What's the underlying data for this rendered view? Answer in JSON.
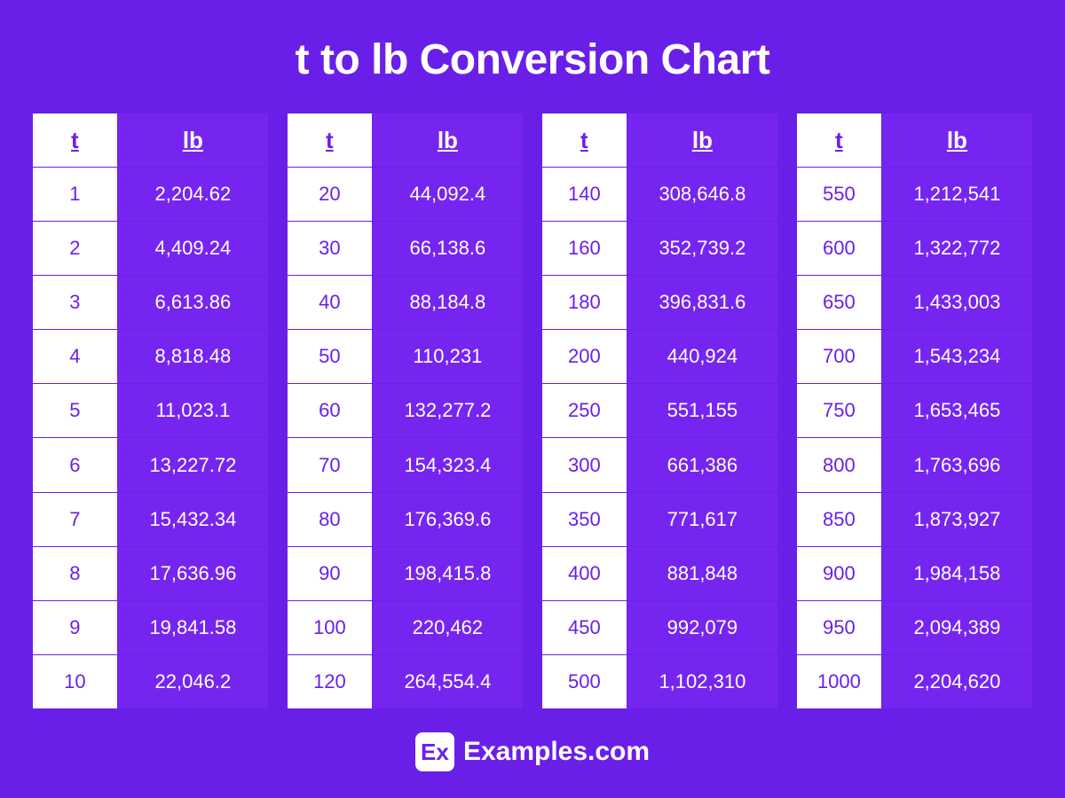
{
  "title": "t to lb Conversion Chart",
  "colors": {
    "background": "#6a1fe8",
    "lb_col_bg": "#7625f1",
    "t_col_bg": "#ffffff",
    "t_text": "#6a1fe8",
    "lb_text": "#ffffff",
    "border": "#6a1fe8",
    "title_text": "#ffffff"
  },
  "typography": {
    "title_fontsize": 48,
    "header_fontsize": 26,
    "cell_fontsize": 22,
    "brand_fontsize": 30
  },
  "headers": {
    "t": "t",
    "lb": "lb"
  },
  "tables": [
    {
      "rows": [
        {
          "t": "1",
          "lb": "2,204.62"
        },
        {
          "t": "2",
          "lb": "4,409.24"
        },
        {
          "t": "3",
          "lb": "6,613.86"
        },
        {
          "t": "4",
          "lb": "8,818.48"
        },
        {
          "t": "5",
          "lb": "11,023.1"
        },
        {
          "t": "6",
          "lb": "13,227.72"
        },
        {
          "t": "7",
          "lb": "15,432.34"
        },
        {
          "t": "8",
          "lb": "17,636.96"
        },
        {
          "t": "9",
          "lb": "19,841.58"
        },
        {
          "t": "10",
          "lb": "22,046.2"
        }
      ]
    },
    {
      "rows": [
        {
          "t": "20",
          "lb": "44,092.4"
        },
        {
          "t": "30",
          "lb": "66,138.6"
        },
        {
          "t": "40",
          "lb": "88,184.8"
        },
        {
          "t": "50",
          "lb": "110,231"
        },
        {
          "t": "60",
          "lb": "132,277.2"
        },
        {
          "t": "70",
          "lb": "154,323.4"
        },
        {
          "t": "80",
          "lb": "176,369.6"
        },
        {
          "t": "90",
          "lb": "198,415.8"
        },
        {
          "t": "100",
          "lb": "220,462"
        },
        {
          "t": "120",
          "lb": "264,554.4"
        }
      ]
    },
    {
      "rows": [
        {
          "t": "140",
          "lb": "308,646.8"
        },
        {
          "t": "160",
          "lb": "352,739.2"
        },
        {
          "t": "180",
          "lb": "396,831.6"
        },
        {
          "t": "200",
          "lb": "440,924"
        },
        {
          "t": "250",
          "lb": "551,155"
        },
        {
          "t": "300",
          "lb": "661,386"
        },
        {
          "t": "350",
          "lb": "771,617"
        },
        {
          "t": "400",
          "lb": "881,848"
        },
        {
          "t": "450",
          "lb": "992,079"
        },
        {
          "t": "500",
          "lb": "1,102,310"
        }
      ]
    },
    {
      "rows": [
        {
          "t": "550",
          "lb": "1,212,541"
        },
        {
          "t": "600",
          "lb": "1,322,772"
        },
        {
          "t": "650",
          "lb": "1,433,003"
        },
        {
          "t": "700",
          "lb": "1,543,234"
        },
        {
          "t": "750",
          "lb": "1,653,465"
        },
        {
          "t": "800",
          "lb": "1,763,696"
        },
        {
          "t": "850",
          "lb": "1,873,927"
        },
        {
          "t": "900",
          "lb": "1,984,158"
        },
        {
          "t": "950",
          "lb": "2,094,389"
        },
        {
          "t": "1000",
          "lb": "2,204,620"
        }
      ]
    }
  ],
  "footer": {
    "logo_text": "Ex",
    "brand": "Examples.com"
  }
}
